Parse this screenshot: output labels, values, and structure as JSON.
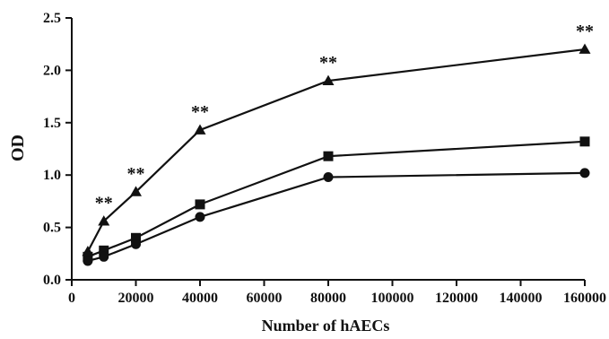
{
  "chart_data": {
    "type": "line",
    "title": "",
    "xlabel": "Number of hAECs",
    "ylabel": "OD",
    "xlim": [
      0,
      160000
    ],
    "ylim": [
      0,
      2.5
    ],
    "x_ticks": [
      0,
      20000,
      40000,
      60000,
      80000,
      100000,
      120000,
      140000,
      160000
    ],
    "x_tick_labels": [
      "0",
      "20000",
      "40000",
      "60000",
      "80000",
      "100000",
      "120000",
      "140000",
      "160000"
    ],
    "y_ticks": [
      0,
      0.5,
      1.0,
      1.5,
      2.0,
      2.5
    ],
    "y_tick_labels": [
      "0.0",
      "0.5",
      "1.0",
      "1.5",
      "2.0",
      "2.5"
    ],
    "grid": false,
    "legend": "none",
    "line_color": "#111111",
    "x": [
      5000,
      10000,
      20000,
      40000,
      80000,
      160000
    ],
    "series": [
      {
        "marker": "triangle",
        "values": [
          0.27,
          0.56,
          0.84,
          1.43,
          1.9,
          2.2
        ]
      },
      {
        "marker": "square",
        "values": [
          0.22,
          0.28,
          0.4,
          0.72,
          1.18,
          1.32
        ]
      },
      {
        "marker": "circle",
        "values": [
          0.18,
          0.22,
          0.34,
          0.6,
          0.98,
          1.02
        ]
      }
    ],
    "annotations": [
      {
        "x": 10000,
        "y": 0.56,
        "text": "**"
      },
      {
        "x": 20000,
        "y": 0.84,
        "text": "**"
      },
      {
        "x": 40000,
        "y": 1.43,
        "text": "**"
      },
      {
        "x": 80000,
        "y": 1.9,
        "text": "**"
      },
      {
        "x": 160000,
        "y": 2.2,
        "text": "**"
      }
    ]
  }
}
